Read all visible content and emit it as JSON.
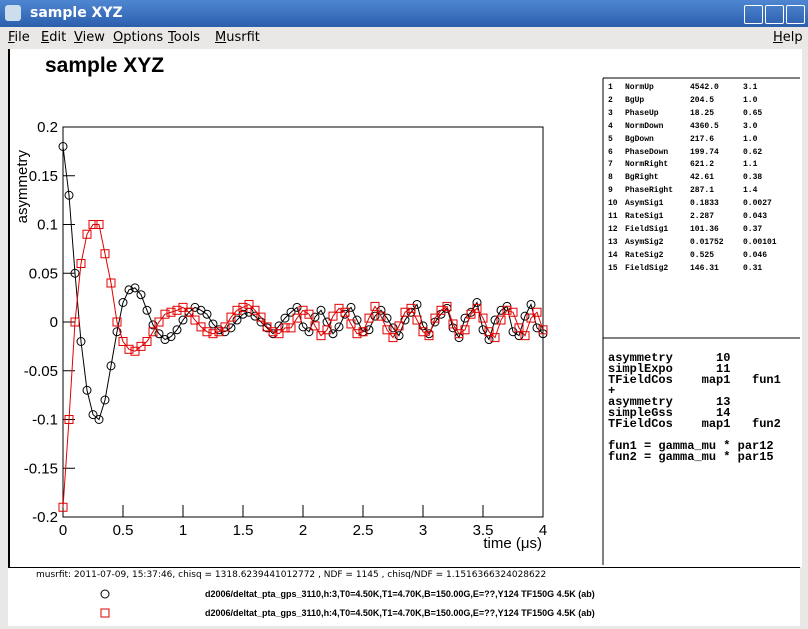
{
  "window": {
    "title": "sample XYZ"
  },
  "menu": [
    "File",
    "Edit",
    "View",
    "Options",
    "Tools",
    "Musrfit",
    "Help"
  ],
  "chart_data": {
    "type": "scatter",
    "title": "sample XYZ",
    "x_label": "time (μs)",
    "y_label": "asymmetry",
    "x": [
      0,
      0.05,
      0.1,
      0.15,
      0.2,
      0.25,
      0.3,
      0.35,
      0.4,
      0.45,
      0.5,
      0.55,
      0.6,
      0.65,
      0.7,
      0.75,
      0.8,
      0.85,
      0.9,
      0.95,
      1,
      1.05,
      1.1,
      1.15,
      1.2,
      1.25,
      1.3,
      1.35,
      1.4,
      1.45,
      1.5,
      1.55,
      1.6,
      1.65,
      1.7,
      1.75,
      1.8,
      1.85,
      1.9,
      1.95,
      2,
      2.05,
      2.1,
      2.15,
      2.2,
      2.25,
      2.3,
      2.35,
      2.4,
      2.45,
      2.5,
      2.55,
      2.6,
      2.65,
      2.7,
      2.75,
      2.8,
      2.85,
      2.9,
      2.95,
      3,
      3.05,
      3.1,
      3.15,
      3.2,
      3.25,
      3.3,
      3.35,
      3.4,
      3.45,
      3.5,
      3.55,
      3.6,
      3.65,
      3.7,
      3.75,
      3.8,
      3.85,
      3.9,
      3.95,
      4
    ],
    "series": [
      {
        "name": "d2006/deltat_pta_gps_3110,h:3,T0=4.50K,T1=4.70K,B=150.00G,E=??,Y124 TF150G 4.5K (ab)",
        "color": "#000000",
        "marker": "circle",
        "values": [
          0.18,
          0.13,
          0.05,
          -0.02,
          -0.07,
          -0.095,
          -0.1,
          -0.08,
          -0.045,
          -0.01,
          0.02,
          0.033,
          0.035,
          0.028,
          0.012,
          -0.003,
          -0.012,
          -0.018,
          -0.015,
          -0.008,
          0.002,
          0.01,
          0.015,
          0.012,
          0.008,
          -0.002,
          -0.008,
          -0.01,
          -0.006,
          0.002,
          0.008,
          0.01,
          0.006,
          0.0,
          -0.006,
          -0.012,
          -0.004,
          0.004,
          0.01,
          0.015,
          -0.005,
          -0.01,
          0.005,
          0.012,
          0.0,
          -0.012,
          -0.005,
          0.008,
          0.015,
          0.002,
          -0.01,
          -0.008,
          0.006,
          0.012,
          0.004,
          -0.006,
          -0.014,
          0.002,
          0.01,
          0.018,
          -0.004,
          -0.012,
          0.0,
          0.008,
          0.014,
          -0.006,
          -0.016,
          0.004,
          0.01,
          0.02,
          -0.008,
          -0.018,
          0.002,
          0.012,
          0.016,
          -0.01,
          -0.014,
          0.006,
          0.018,
          -0.006,
          -0.012
        ]
      },
      {
        "name": "d2006/deltat_pta_gps_3110,h:4,T0=4.50K,T1=4.70K,B=150.00G,E=??,Y124 TF150G 4.5K (ab)",
        "color": "#e00000",
        "marker": "square",
        "values": [
          -0.19,
          -0.1,
          0.0,
          0.06,
          0.09,
          0.1,
          0.1,
          0.07,
          0.04,
          0.0,
          -0.02,
          -0.028,
          -0.03,
          -0.025,
          -0.02,
          -0.01,
          0.0,
          0.008,
          0.01,
          0.012,
          0.015,
          0.01,
          0.002,
          -0.005,
          -0.01,
          -0.012,
          -0.01,
          -0.005,
          0.005,
          0.012,
          0.015,
          0.018,
          0.012,
          0.005,
          -0.005,
          -0.01,
          -0.012,
          -0.006,
          -0.006,
          0.004,
          0.012,
          0.008,
          -0.004,
          -0.014,
          -0.008,
          0.006,
          0.014,
          0.01,
          -0.002,
          -0.012,
          -0.01,
          0.004,
          0.016,
          0.006,
          -0.008,
          -0.016,
          -0.004,
          0.01,
          0.014,
          0.002,
          -0.01,
          -0.014,
          0.004,
          0.012,
          0.016,
          -0.002,
          -0.012,
          -0.008,
          0.008,
          0.014,
          0.004,
          -0.01,
          -0.016,
          0.002,
          0.012,
          0.01,
          -0.006,
          -0.014,
          0.004,
          0.01,
          -0.008
        ]
      }
    ],
    "xlim": [
      0,
      4
    ],
    "ylim": [
      -0.2,
      0.2
    ],
    "xticks": [
      0,
      0.5,
      1,
      1.5,
      2,
      2.5,
      3,
      3.5,
      4
    ],
    "yticks": [
      -0.2,
      -0.15,
      -0.1,
      -0.05,
      0,
      0.05,
      0.1,
      0.15,
      0.2
    ]
  },
  "parameters": [
    [
      "1",
      "NormUp",
      "4542.0",
      "3.1"
    ],
    [
      "2",
      "BgUp",
      "204.5",
      "1.0"
    ],
    [
      "3",
      "PhaseUp",
      "18.25",
      "0.65"
    ],
    [
      "4",
      "NormDown",
      "4360.5",
      "3.0"
    ],
    [
      "5",
      "BgDown",
      "217.6",
      "1.0"
    ],
    [
      "6",
      "PhaseDown",
      "199.74",
      "0.62"
    ],
    [
      "7",
      "NormRight",
      "621.2",
      "1.1"
    ],
    [
      "8",
      "BgRight",
      "42.61",
      "0.38"
    ],
    [
      "9",
      "PhaseRight",
      "287.1",
      "1.4"
    ],
    [
      "10",
      "AsymSig1",
      "0.1833",
      "0.0027"
    ],
    [
      "11",
      "RateSig1",
      "2.287",
      "0.043"
    ],
    [
      "12",
      "FieldSig1",
      "101.36",
      "0.37"
    ],
    [
      "13",
      "AsymSig2",
      "0.01752",
      "0.00101"
    ],
    [
      "14",
      "RateSig2",
      "0.525",
      "0.046"
    ],
    [
      "15",
      "FieldSig2",
      "146.31",
      "0.31"
    ]
  ],
  "theory": {
    "lines": [
      "asymmetry      10",
      "simplExpo      11",
      "TFieldCos    map1   fun1",
      "+",
      "asymmetry      13",
      "simpleGss      14",
      "TFieldCos    map1   fun2"
    ],
    "functions": [
      "fun1 = gamma_mu * par12",
      "fun2 = gamma_mu * par15"
    ]
  },
  "footer": "musrfit: 2011-07-09, 15:37:46, chisq = 1318.6239441012772 , NDF = 1145 , chisq/NDF = 1.1516366324028622"
}
